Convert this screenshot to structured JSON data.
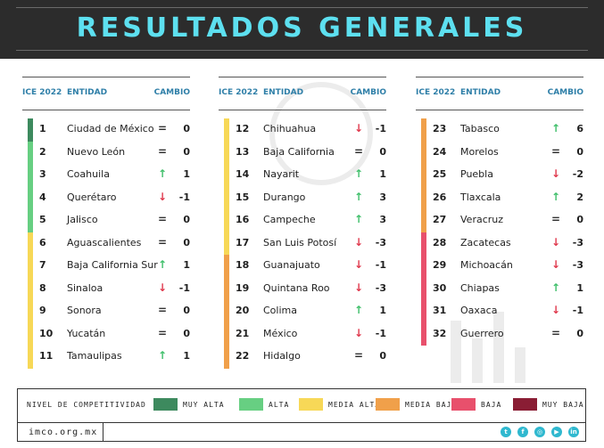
{
  "title": "RESULTADOS GENERALES",
  "columns_headers": {
    "ice": "ICE 2022",
    "entidad": "ENTIDAD",
    "cambio": "CAMBIO"
  },
  "colors": {
    "muy_alta": "#3d8a5e",
    "alta": "#67cf82",
    "media_alta": "#f7d857",
    "media_baja": "#f0a04a",
    "baja": "#e8506c",
    "muy_baja": "#8a1d34",
    "up": "#3fbf6a",
    "down": "#e03a4e",
    "header_text": "#5de0f0",
    "header_bg": "#2c2c2c"
  },
  "columns": [
    [
      {
        "rank": "1",
        "name": "Ciudad de México",
        "trend": "=",
        "change": "0",
        "level": "muy_alta"
      },
      {
        "rank": "2",
        "name": "Nuevo León",
        "trend": "=",
        "change": "0",
        "level": "alta"
      },
      {
        "rank": "3",
        "name": "Coahuila",
        "trend": "↑",
        "change": "1",
        "level": "alta"
      },
      {
        "rank": "4",
        "name": "Querétaro",
        "trend": "↓",
        "change": "-1",
        "level": "alta"
      },
      {
        "rank": "5",
        "name": "Jalisco",
        "trend": "=",
        "change": "0",
        "level": "alta"
      },
      {
        "rank": "6",
        "name": "Aguascalientes",
        "trend": "=",
        "change": "0",
        "level": "media_alta"
      },
      {
        "rank": "7",
        "name": "Baja California Sur",
        "trend": "↑",
        "change": "1",
        "level": "media_alta"
      },
      {
        "rank": "8",
        "name": "Sinaloa",
        "trend": "↓",
        "change": "-1",
        "level": "media_alta"
      },
      {
        "rank": "9",
        "name": "Sonora",
        "trend": "=",
        "change": "0",
        "level": "media_alta"
      },
      {
        "rank": "10",
        "name": "Yucatán",
        "trend": "=",
        "change": "0",
        "level": "media_alta"
      },
      {
        "rank": "11",
        "name": "Tamaulipas",
        "trend": "↑",
        "change": "1",
        "level": "media_alta"
      }
    ],
    [
      {
        "rank": "12",
        "name": "Chihuahua",
        "trend": "↓",
        "change": "-1",
        "level": "media_alta"
      },
      {
        "rank": "13",
        "name": "Baja California",
        "trend": "=",
        "change": "0",
        "level": "media_alta"
      },
      {
        "rank": "14",
        "name": "Nayarit",
        "trend": "↑",
        "change": "1",
        "level": "media_alta"
      },
      {
        "rank": "15",
        "name": "Durango",
        "trend": "↑",
        "change": "3",
        "level": "media_alta"
      },
      {
        "rank": "16",
        "name": "Campeche",
        "trend": "↑",
        "change": "3",
        "level": "media_alta"
      },
      {
        "rank": "17",
        "name": "San Luis Potosí",
        "trend": "↓",
        "change": "-3",
        "level": "media_alta"
      },
      {
        "rank": "18",
        "name": "Guanajuato",
        "trend": "↓",
        "change": "-1",
        "level": "media_baja"
      },
      {
        "rank": "19",
        "name": "Quintana Roo",
        "trend": "↓",
        "change": "-3",
        "level": "media_baja"
      },
      {
        "rank": "20",
        "name": "Colima",
        "trend": "↑",
        "change": "1",
        "level": "media_baja"
      },
      {
        "rank": "21",
        "name": "México",
        "trend": "↓",
        "change": "-1",
        "level": "media_baja"
      },
      {
        "rank": "22",
        "name": "Hidalgo",
        "trend": "=",
        "change": "0",
        "level": "media_baja"
      }
    ],
    [
      {
        "rank": "23",
        "name": "Tabasco",
        "trend": "↑",
        "change": "6",
        "level": "media_baja"
      },
      {
        "rank": "24",
        "name": "Morelos",
        "trend": "=",
        "change": "0",
        "level": "media_baja"
      },
      {
        "rank": "25",
        "name": "Puebla",
        "trend": "↓",
        "change": "-2",
        "level": "media_baja"
      },
      {
        "rank": "26",
        "name": "Tlaxcala",
        "trend": "↑",
        "change": "2",
        "level": "media_baja"
      },
      {
        "rank": "27",
        "name": "Veracruz",
        "trend": "=",
        "change": "0",
        "level": "media_baja"
      },
      {
        "rank": "28",
        "name": "Zacatecas",
        "trend": "↓",
        "change": "-3",
        "level": "baja"
      },
      {
        "rank": "29",
        "name": "Michoacán",
        "trend": "↓",
        "change": "-3",
        "level": "baja"
      },
      {
        "rank": "30",
        "name": "Chiapas",
        "trend": "↑",
        "change": "1",
        "level": "baja"
      },
      {
        "rank": "31",
        "name": "Oaxaca",
        "trend": "↓",
        "change": "-1",
        "level": "baja"
      },
      {
        "rank": "32",
        "name": "Guerrero",
        "trend": "=",
        "change": "0",
        "level": "baja"
      }
    ]
  ],
  "legend": {
    "label": "NIVEL DE COMPETITIVIDAD",
    "items": [
      {
        "key": "muy_alta",
        "label": "MUY ALTA"
      },
      {
        "key": "alta",
        "label": "ALTA"
      },
      {
        "key": "media_alta",
        "label": "MEDIA ALTA"
      },
      {
        "key": "media_baja",
        "label": "MEDIA BAJA"
      },
      {
        "key": "baja",
        "label": "BAJA"
      },
      {
        "key": "muy_baja",
        "label": "MUY BAJA"
      }
    ]
  },
  "footer": {
    "site": "imco.org.mx",
    "social": [
      {
        "icon": "twitter-icon",
        "glyph": "t"
      },
      {
        "icon": "facebook-icon",
        "glyph": "f"
      },
      {
        "icon": "instagram-icon",
        "glyph": "◎"
      },
      {
        "icon": "youtube-icon",
        "glyph": "▶"
      },
      {
        "icon": "linkedin-icon",
        "glyph": "in"
      }
    ]
  }
}
